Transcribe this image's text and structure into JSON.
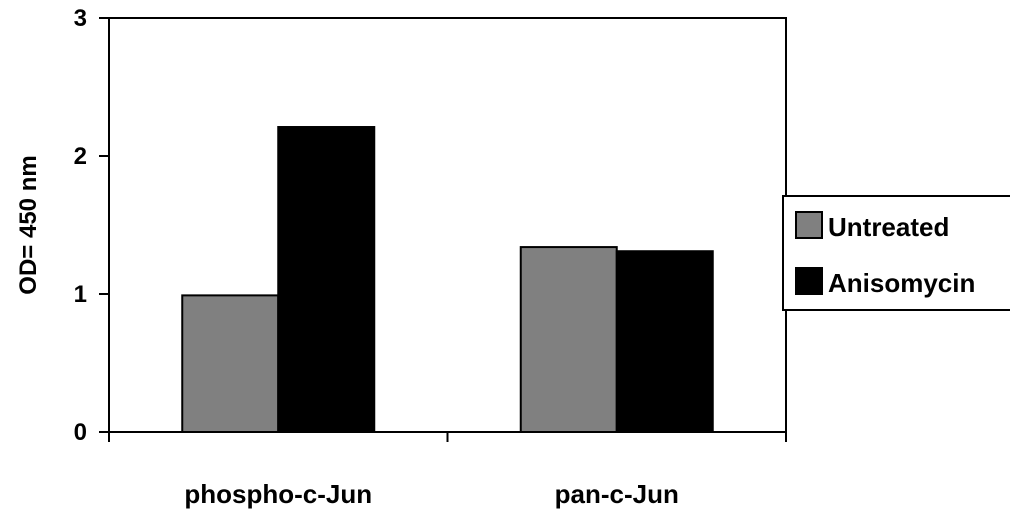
{
  "chart_data": {
    "type": "bar",
    "categories": [
      "phospho-c-Jun",
      "pan-c-Jun"
    ],
    "series": [
      {
        "name": "Untreated",
        "values": [
          0.99,
          1.34
        ],
        "color": "#808080"
      },
      {
        "name": "Anisomycin",
        "values": [
          2.21,
          1.31
        ],
        "color": "#000000"
      }
    ],
    "ylabel": "OD= 450 nm",
    "xlabel": "",
    "ylim": [
      0,
      3
    ],
    "yticks": [
      "0",
      "1",
      "2",
      "3"
    ],
    "grid": false,
    "legend_position": "right"
  }
}
